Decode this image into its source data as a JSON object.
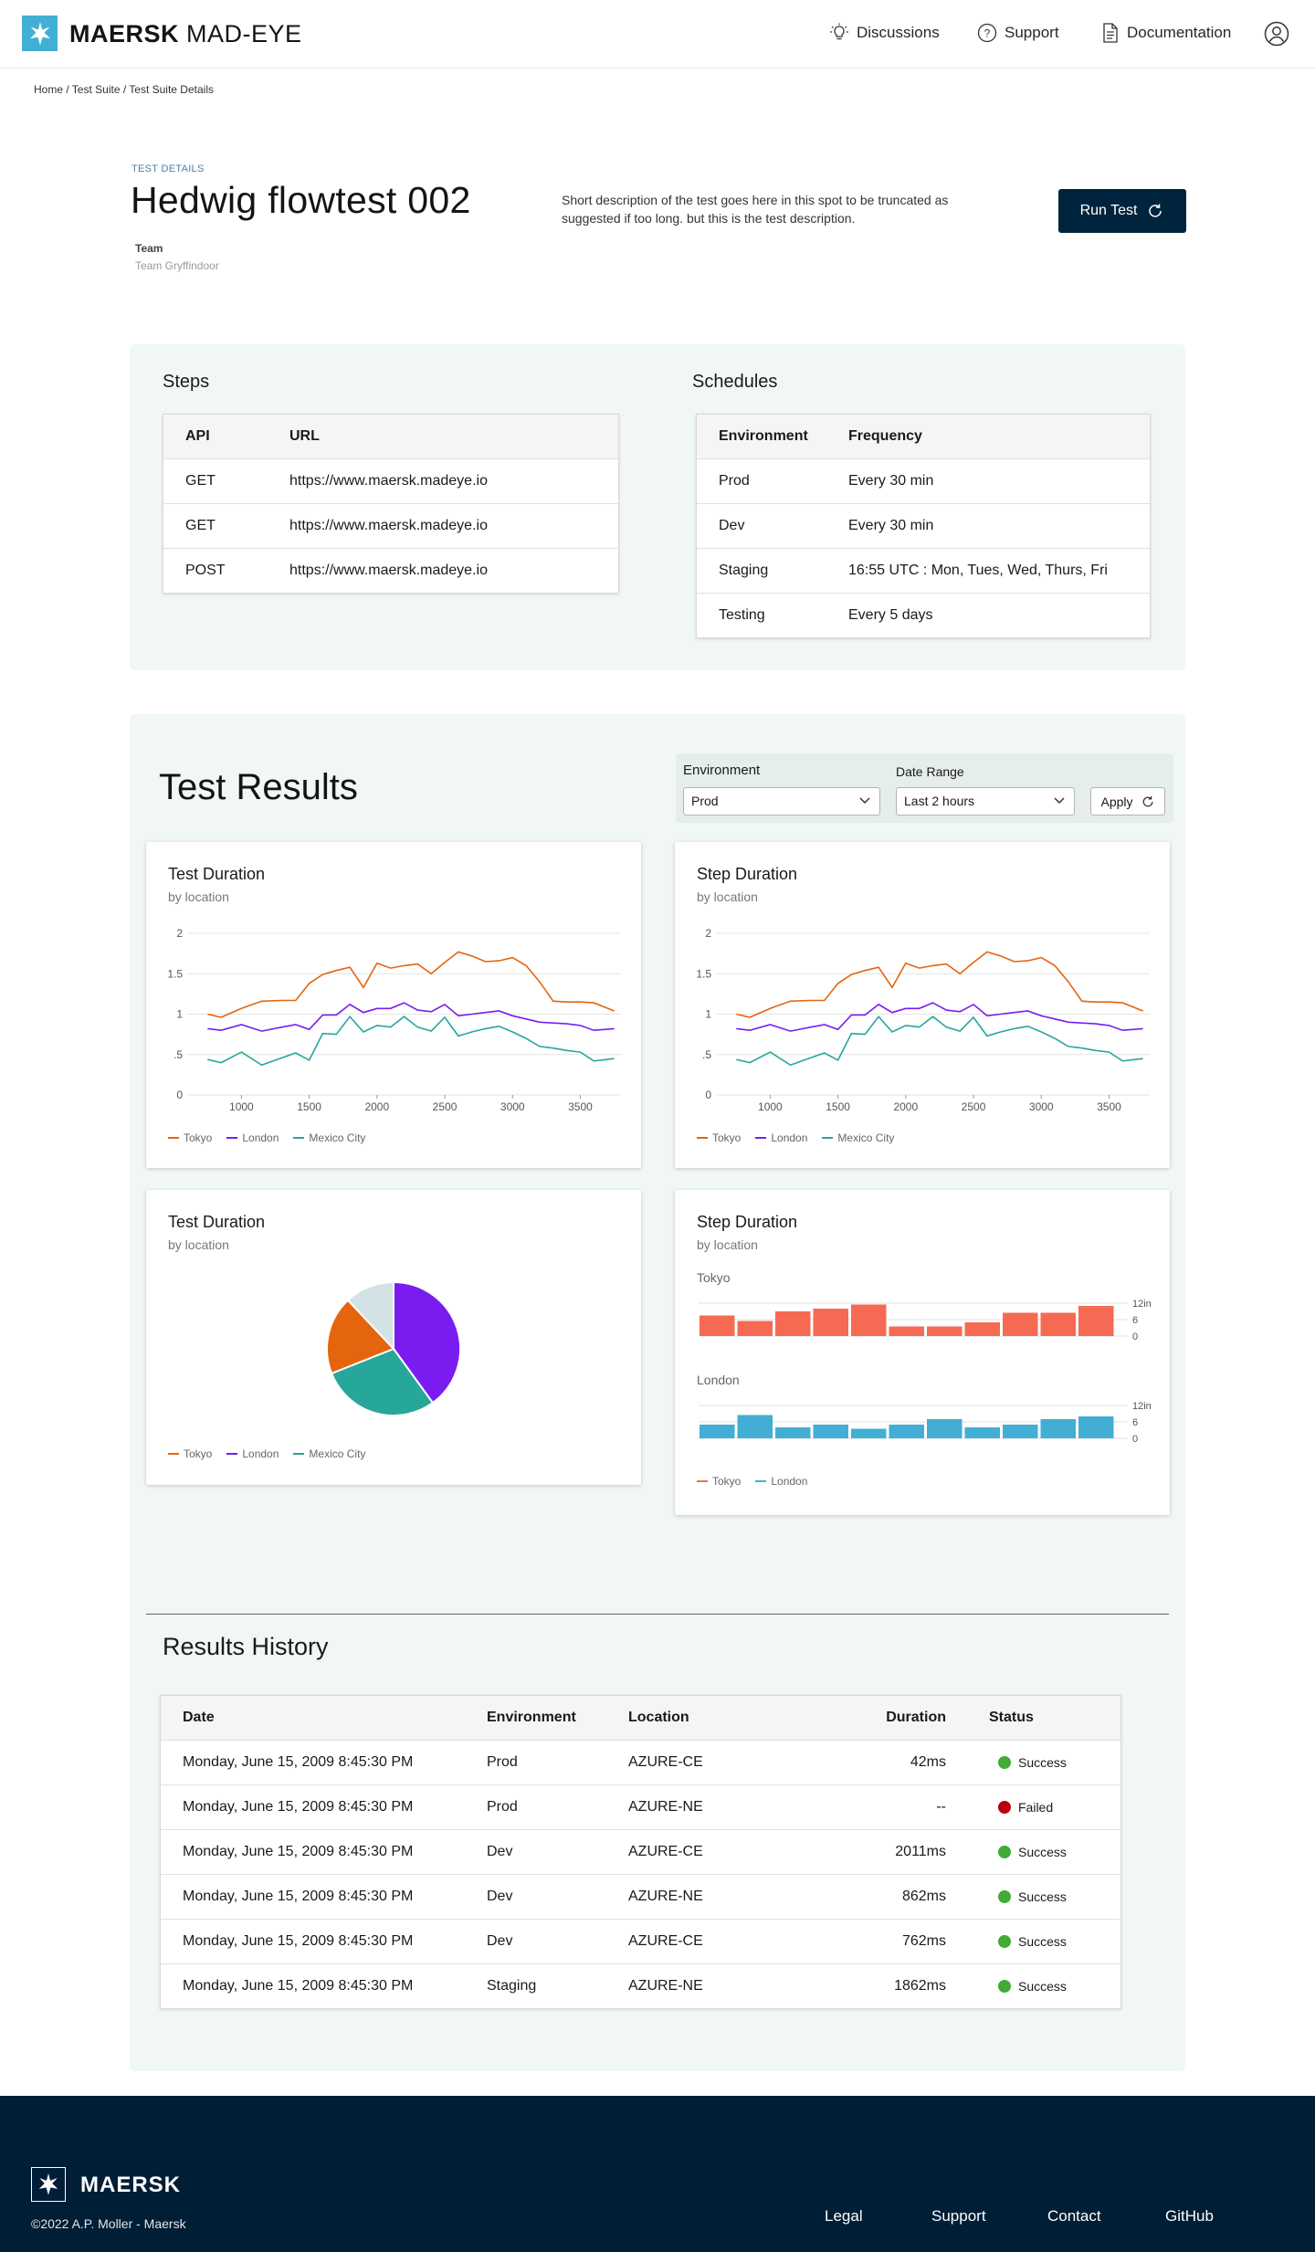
{
  "header": {
    "brand_bold": "MAERSK",
    "brand_light": " MAD-EYE",
    "nav": [
      {
        "label": "Discussions",
        "icon": "lightbulb-icon"
      },
      {
        "label": "Support",
        "icon": "help-circle-icon"
      },
      {
        "label": "Documentation",
        "icon": "document-icon"
      }
    ],
    "avatar_icon": "user-circle-icon"
  },
  "breadcrumb": "Home / Test Suite / Test Suite Details",
  "details": {
    "eyebrow": "TEST DETAILS",
    "title": "Hedwig flowtest 002",
    "team_label": "Team",
    "team_value": "Team Gryffindoor",
    "description": "Short description of the test goes here in this spot  to be truncated as suggested if too long. but this is the test description.",
    "run_label": "Run Test"
  },
  "steps": {
    "title": "Steps",
    "headers": [
      "API",
      "URL"
    ],
    "rows": [
      [
        "GET",
        "https://www.maersk.madeye.io"
      ],
      [
        "GET",
        "https://www.maersk.madeye.io"
      ],
      [
        "POST",
        "https://www.maersk.madeye.io"
      ]
    ]
  },
  "schedules": {
    "title": "Schedules",
    "headers": [
      "Environment",
      "Frequency"
    ],
    "rows": [
      [
        "Prod",
        "Every 30 min"
      ],
      [
        "Dev",
        "Every 30 min"
      ],
      [
        "Staging",
        "16:55 UTC : Mon, Tues, Wed, Thurs, Fri"
      ],
      [
        "Testing",
        "Every 5 days"
      ]
    ]
  },
  "results": {
    "title": "Test Results",
    "env_label": "Environment",
    "env_value": "Prod",
    "date_label": "Date Range",
    "date_value": "Last 2 hours",
    "apply_label": "Apply"
  },
  "colors": {
    "tokyo": "#e5650e",
    "london": "#7a1cf0",
    "mexico": "#27a69a",
    "bar_tokyo": "#f66a53",
    "bar_london": "#42aed6",
    "success": "#40ab35",
    "failed": "#b80012",
    "brand": "#42b0d5",
    "navy": "#00243d"
  },
  "chart_data": [
    {
      "type": "line",
      "title": "Test Duration",
      "subtitle": "by location",
      "x": [
        750,
        850,
        1000,
        1150,
        1300,
        1400,
        1500,
        1600,
        1700,
        1800,
        1900,
        2000,
        2100,
        2200,
        2300,
        2400,
        2500,
        2600,
        2700,
        2800,
        2900,
        3000,
        3100,
        3200,
        3300,
        3400,
        3500,
        3600,
        3750
      ],
      "x_ticks": [
        "1000",
        "1500",
        "2000",
        "2500",
        "3000",
        "3500"
      ],
      "y_ticks": [
        "0",
        ".5",
        "1",
        "1.5",
        "2"
      ],
      "ylim": [
        0,
        2
      ],
      "series": [
        {
          "name": "Tokyo",
          "values": [
            1.0,
            0.96,
            1.07,
            1.16,
            1.17,
            1.17,
            1.38,
            1.49,
            1.54,
            1.58,
            1.33,
            1.63,
            1.57,
            1.6,
            1.62,
            1.5,
            1.64,
            1.77,
            1.72,
            1.65,
            1.66,
            1.7,
            1.6,
            1.4,
            1.16,
            1.15,
            1.15,
            1.14,
            1.04
          ]
        },
        {
          "name": "London",
          "values": [
            0.82,
            0.8,
            0.87,
            0.79,
            0.84,
            0.87,
            0.81,
            0.99,
            0.99,
            1.12,
            1.02,
            1.07,
            1.07,
            1.14,
            1.05,
            1.03,
            1.12,
            0.98,
            1.0,
            1.02,
            1.04,
            0.98,
            0.94,
            0.9,
            0.89,
            0.88,
            0.86,
            0.8,
            0.82
          ]
        },
        {
          "name": "Mexico City",
          "values": [
            0.44,
            0.4,
            0.53,
            0.37,
            0.46,
            0.52,
            0.43,
            0.76,
            0.75,
            0.97,
            0.78,
            0.86,
            0.84,
            0.97,
            0.84,
            0.79,
            0.96,
            0.73,
            0.78,
            0.82,
            0.85,
            0.78,
            0.7,
            0.6,
            0.58,
            0.55,
            0.53,
            0.42,
            0.45
          ]
        }
      ]
    },
    {
      "type": "line",
      "title": "Step Duration",
      "subtitle": "by location",
      "x": [
        750,
        850,
        1000,
        1150,
        1300,
        1400,
        1500,
        1600,
        1700,
        1800,
        1900,
        2000,
        2100,
        2200,
        2300,
        2400,
        2500,
        2600,
        2700,
        2800,
        2900,
        3000,
        3100,
        3200,
        3300,
        3400,
        3500,
        3600,
        3750
      ],
      "x_ticks": [
        "1000",
        "1500",
        "2000",
        "2500",
        "3000",
        "3500"
      ],
      "y_ticks": [
        "0",
        ".5",
        "1",
        "1.5",
        "2"
      ],
      "ylim": [
        0,
        2
      ],
      "series": [
        {
          "name": "Tokyo",
          "values": [
            1.0,
            0.96,
            1.07,
            1.16,
            1.17,
            1.17,
            1.38,
            1.49,
            1.54,
            1.58,
            1.33,
            1.63,
            1.57,
            1.6,
            1.62,
            1.5,
            1.64,
            1.77,
            1.72,
            1.65,
            1.66,
            1.7,
            1.6,
            1.4,
            1.16,
            1.15,
            1.15,
            1.14,
            1.04
          ]
        },
        {
          "name": "London",
          "values": [
            0.82,
            0.8,
            0.87,
            0.79,
            0.84,
            0.87,
            0.81,
            0.99,
            0.99,
            1.12,
            1.02,
            1.07,
            1.07,
            1.14,
            1.05,
            1.03,
            1.12,
            0.98,
            1.0,
            1.02,
            1.04,
            0.98,
            0.94,
            0.9,
            0.89,
            0.88,
            0.86,
            0.8,
            0.82
          ]
        },
        {
          "name": "Mexico City",
          "values": [
            0.44,
            0.4,
            0.53,
            0.37,
            0.46,
            0.52,
            0.43,
            0.76,
            0.75,
            0.97,
            0.78,
            0.86,
            0.84,
            0.97,
            0.84,
            0.79,
            0.96,
            0.73,
            0.78,
            0.82,
            0.85,
            0.78,
            0.7,
            0.6,
            0.58,
            0.55,
            0.53,
            0.42,
            0.45
          ]
        }
      ]
    },
    {
      "type": "pie",
      "title": "Test Duration",
      "subtitle": "by location",
      "slices": [
        {
          "name": "London",
          "value": 40,
          "color": "#7a1cf0"
        },
        {
          "name": "Mexico City",
          "value": 29,
          "color": "#27a69a"
        },
        {
          "name": "Tokyo",
          "value": 19,
          "color": "#e5650e"
        },
        {
          "name": "",
          "value": 12,
          "color": "#d3e2e5"
        }
      ],
      "legend": [
        "Tokyo",
        "London",
        "Mexico City"
      ]
    },
    {
      "type": "bar",
      "title": "Step Duration",
      "subtitle": "by location",
      "y_ticks": [
        "0",
        "6",
        "12in"
      ],
      "ylim": [
        0,
        12
      ],
      "panels": [
        {
          "name": "Tokyo",
          "values": [
            7.5,
            5.5,
            9,
            10,
            11.5,
            3.5,
            3.5,
            5,
            8.5,
            8.5,
            11
          ]
        },
        {
          "name": "London",
          "values": [
            5,
            8.5,
            4,
            5,
            3.5,
            5,
            7,
            4,
            5,
            7,
            8
          ]
        }
      ],
      "legend": [
        "Tokyo",
        "London"
      ]
    }
  ],
  "history": {
    "title": "Results History",
    "headers": [
      "Date",
      "Environment",
      "Location",
      "Duration",
      "Status"
    ],
    "rows": [
      {
        "date": "Monday, June 15, 2009 8:45:30 PM",
        "env": "Prod",
        "loc": "AZURE-CE",
        "dur": "42ms",
        "status": "Success"
      },
      {
        "date": "Monday, June 15, 2009 8:45:30 PM",
        "env": "Prod",
        "loc": "AZURE-NE",
        "dur": "--",
        "status": "Failed"
      },
      {
        "date": "Monday, June 15, 2009 8:45:30 PM",
        "env": "Dev",
        "loc": "AZURE-CE",
        "dur": "2011ms",
        "status": "Success"
      },
      {
        "date": "Monday, June 15, 2009 8:45:30 PM",
        "env": "Dev",
        "loc": "AZURE-NE",
        "dur": "862ms",
        "status": "Success"
      },
      {
        "date": "Monday, June 15, 2009 8:45:30 PM",
        "env": "Dev",
        "loc": "AZURE-CE",
        "dur": "762ms",
        "status": "Success"
      },
      {
        "date": "Monday, June 15, 2009 8:45:30 PM",
        "env": "Staging",
        "loc": "AZURE-NE",
        "dur": "1862ms",
        "status": "Success"
      }
    ]
  },
  "footer": {
    "brand": "MAERSK",
    "copyright": "©2022 A.P. Moller - Maersk",
    "links": [
      "Legal",
      "Support",
      "Contact",
      "GitHub"
    ]
  }
}
